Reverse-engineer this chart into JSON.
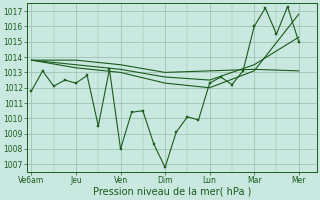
{
  "bg_color": "#c8e8e0",
  "grid_color": "#99bbaa",
  "line_color": "#1a5c1a",
  "xlabel": "Pression niveau de la mer( hPa )",
  "xlabel_fontsize": 7.0,
  "tick_labels": [
    "Ve6am",
    "Jeu",
    "Ven",
    "Dim",
    "Lun",
    "Mar",
    "Mer"
  ],
  "tick_positions": [
    0,
    2,
    4,
    6,
    8,
    10,
    12
  ],
  "xlim": [
    -0.2,
    12.8
  ],
  "ylim": [
    1006.5,
    1017.5
  ],
  "yticks": [
    1007,
    1008,
    1009,
    1010,
    1011,
    1012,
    1013,
    1014,
    1015,
    1016,
    1017
  ],
  "series_main": [
    [
      0,
      1011.8
    ],
    [
      0.5,
      1013.1
    ],
    [
      1,
      1012.1
    ],
    [
      1.5,
      1012.5
    ],
    [
      2,
      1012.3
    ],
    [
      2.5,
      1012.8
    ],
    [
      3,
      1009.5
    ],
    [
      3.5,
      1013.2
    ],
    [
      4,
      1008.0
    ],
    [
      4.5,
      1010.4
    ],
    [
      5,
      1010.5
    ],
    [
      5.5,
      1008.3
    ],
    [
      6,
      1006.8
    ],
    [
      6.5,
      1009.1
    ],
    [
      7,
      1010.1
    ],
    [
      7.5,
      1009.9
    ],
    [
      8,
      1012.3
    ],
    [
      8.5,
      1012.7
    ],
    [
      9,
      1012.2
    ],
    [
      9.5,
      1013.1
    ],
    [
      10,
      1016.0
    ],
    [
      10.5,
      1017.2
    ],
    [
      11,
      1015.5
    ],
    [
      11.5,
      1017.3
    ],
    [
      12,
      1015.0
    ]
  ],
  "line2": [
    [
      0,
      1013.8
    ],
    [
      2,
      1013.8
    ],
    [
      4,
      1013.5
    ],
    [
      6,
      1013.0
    ],
    [
      8,
      1013.1
    ],
    [
      10,
      1013.2
    ],
    [
      12,
      1013.1
    ]
  ],
  "line3": [
    [
      0,
      1013.8
    ],
    [
      2,
      1013.5
    ],
    [
      4,
      1013.2
    ],
    [
      6,
      1012.7
    ],
    [
      8,
      1012.5
    ],
    [
      10,
      1013.5
    ],
    [
      12,
      1015.3
    ]
  ],
  "line4": [
    [
      0,
      1013.8
    ],
    [
      2,
      1013.3
    ],
    [
      4,
      1013.0
    ],
    [
      6,
      1012.3
    ],
    [
      8,
      1012.0
    ],
    [
      10,
      1013.1
    ],
    [
      12,
      1016.8
    ]
  ]
}
